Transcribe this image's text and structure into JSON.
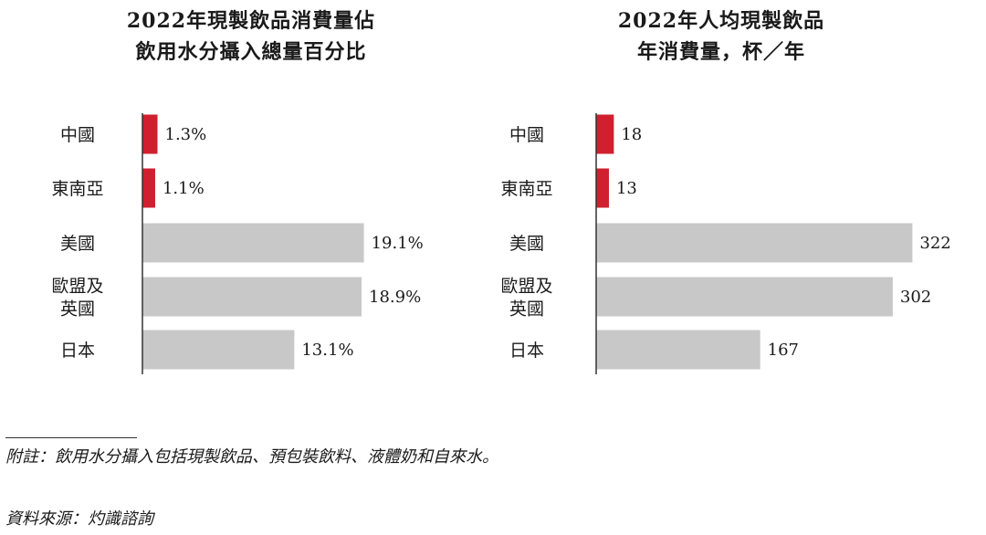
{
  "chart_data": [
    {
      "type": "bar",
      "orientation": "horizontal",
      "title": [
        "2022年現製飲品消費量佔",
        "飲用水分攝入總量百分比"
      ],
      "categories": [
        [
          "中國"
        ],
        [
          "東南亞"
        ],
        [
          "美國"
        ],
        [
          "歐盟及",
          "英國"
        ],
        [
          "日本"
        ]
      ],
      "values": [
        1.3,
        1.1,
        19.1,
        18.9,
        13.1
      ],
      "value_labels": [
        "1.3%",
        "1.1%",
        "19.1%",
        "18.9%",
        "13.1%"
      ],
      "highlight": [
        true,
        true,
        false,
        false,
        false
      ],
      "xlim": [
        0,
        20
      ]
    },
    {
      "type": "bar",
      "orientation": "horizontal",
      "title": [
        "2022年人均現製飲品",
        "年消費量，杯／年"
      ],
      "categories": [
        [
          "中國"
        ],
        [
          "東南亞"
        ],
        [
          "美國"
        ],
        [
          "歐盟及",
          "英國"
        ],
        [
          "日本"
        ]
      ],
      "values": [
        18,
        13,
        322,
        302,
        167
      ],
      "value_labels": [
        "18",
        "13",
        "322",
        "302",
        "167"
      ],
      "highlight": [
        true,
        true,
        false,
        false,
        false
      ],
      "xlim": [
        0,
        330
      ]
    }
  ],
  "colors": {
    "highlight": "#d0202f",
    "bar": "#c8c8c8",
    "axis": "#333333"
  },
  "notes": {
    "note": "附註：飲用水分攝入包括現製飲品、預包裝飲料、液體奶和自來水。",
    "source": "資料來源：灼識諮詢"
  }
}
